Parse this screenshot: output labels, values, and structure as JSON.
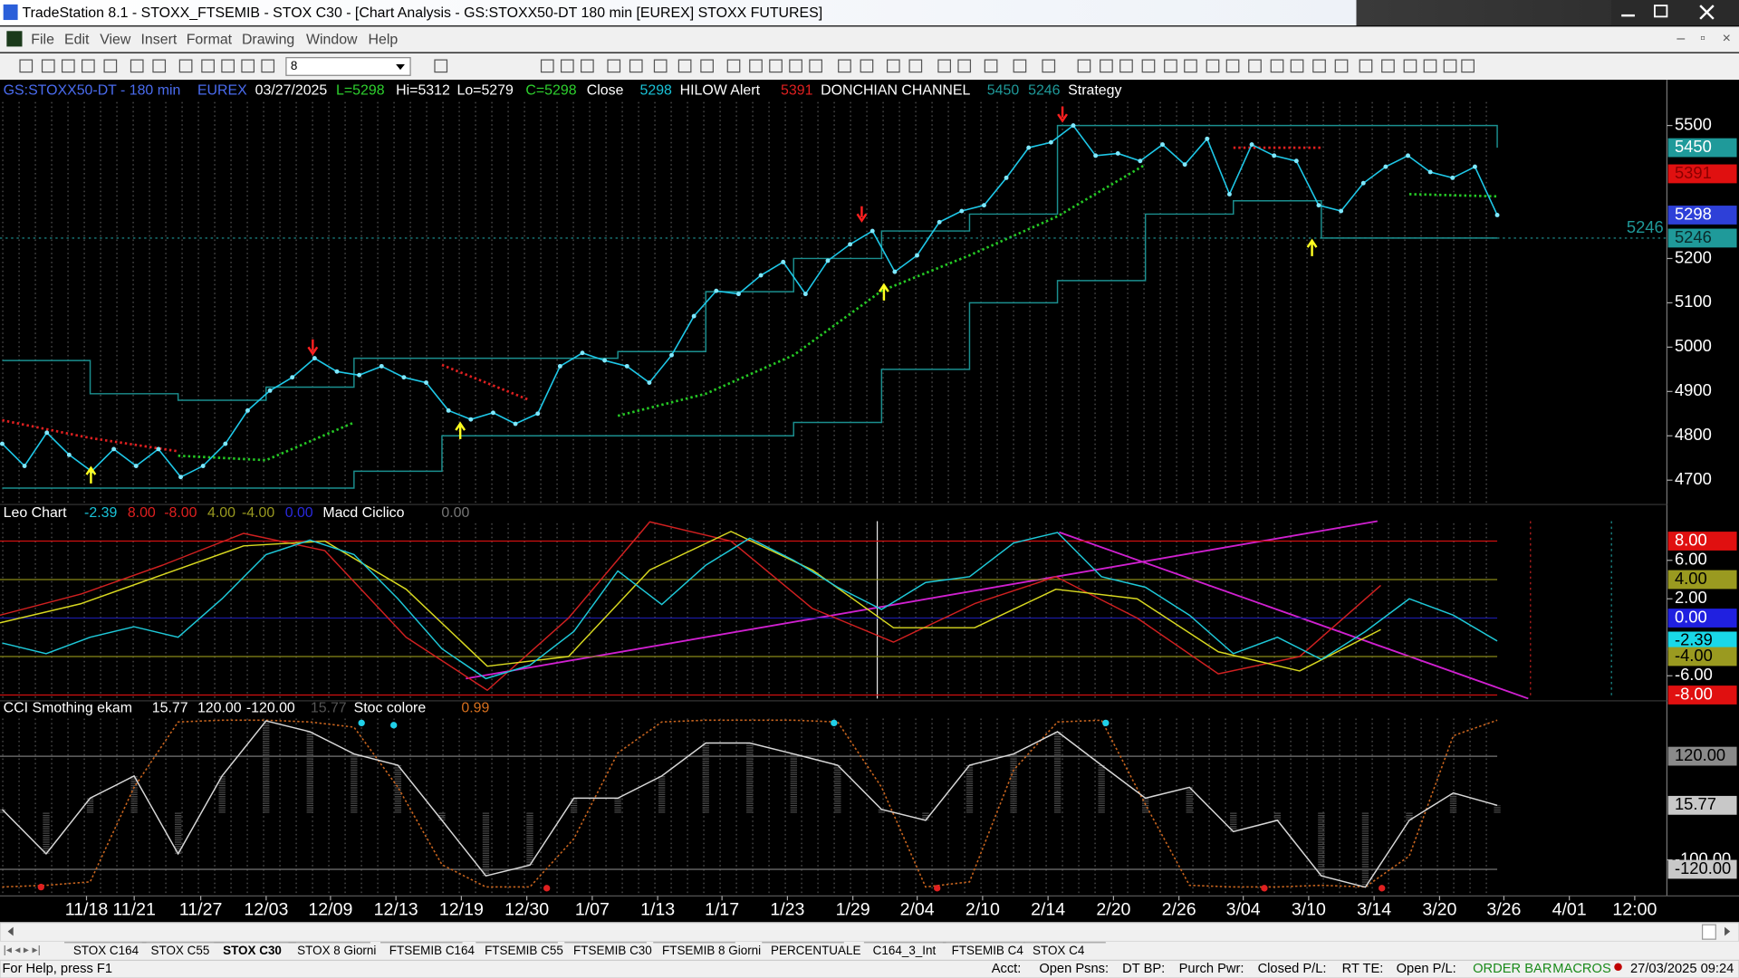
{
  "window": {
    "title": "TradeStation 8.1 - STOXX_FTSEMIB - STOX  C30 - [Chart Analysis - GS:STOXX50-DT  180 min  [EUREX] STOXX FUTURES]",
    "menu": [
      "File",
      "Edit",
      "View",
      "Insert",
      "Format",
      "Drawing",
      "Window",
      "Help"
    ],
    "interval": "8"
  },
  "price_pane": {
    "header": [
      {
        "text": "GS:STOXX50-DT - 180 min",
        "color": "#4a6cf0"
      },
      {
        "text": "EUREX",
        "color": "#4a6cf0"
      },
      {
        "text": "03/27/2025",
        "color": "#ffffff"
      },
      {
        "text": "L=5298",
        "color": "#2ed12e"
      },
      {
        "text": "Hi=5312",
        "color": "#ffffff"
      },
      {
        "text": "Lo=5279",
        "color": "#ffffff"
      },
      {
        "text": "C=5298",
        "color": "#2ed12e"
      },
      {
        "text": "Close",
        "color": "#ffffff"
      },
      {
        "text": "5298",
        "color": "#19c3d8"
      },
      {
        "text": "HILOW Alert",
        "color": "#ffffff"
      },
      {
        "text": "5391",
        "color": "#e02020"
      },
      {
        "text": "DONCHIAN CHANNEL",
        "color": "#ffffff"
      },
      {
        "text": "5450",
        "color": "#1f9a9a"
      },
      {
        "text": "5246",
        "color": "#1f9a9a"
      },
      {
        "text": "Strategy",
        "color": "#ffffff"
      }
    ],
    "ylim": [
      4645,
      5603
    ],
    "yticks": [
      4700,
      4800,
      4900,
      5000,
      5100,
      5200,
      5500
    ],
    "close": {
      "color": "#1ec8e8",
      "values": [
        4782,
        4732,
        4807,
        4757,
        4720,
        4770,
        4732,
        4770,
        4707,
        4732,
        4782,
        4857,
        4902,
        4932,
        4975,
        4945,
        4937,
        4957,
        4932,
        4920,
        4857,
        4837,
        4852,
        4827,
        4850,
        4957,
        4987,
        4970,
        4957,
        4920,
        4982,
        5070,
        5127,
        5120,
        5162,
        5192,
        5120,
        5195,
        5232,
        5262,
        5170,
        5207,
        5282,
        5307,
        5320,
        5382,
        5450,
        5462,
        5500,
        5432,
        5437,
        5420,
        5457,
        5412,
        5470,
        5345,
        5457,
        5432,
        5420,
        5320,
        5307,
        5370,
        5407,
        5432,
        5395,
        5382,
        5407,
        5298
      ]
    },
    "donchian_upper": {
      "color": "#1b8f8f",
      "values": [
        4970,
        4895,
        4880,
        4910,
        4975,
        4975,
        4975,
        4990,
        5125,
        5200,
        5262,
        5300,
        5500,
        5500,
        5500,
        5500,
        5500,
        5450
      ]
    },
    "donchian_lower": {
      "color": "#1b8f8f",
      "values": [
        4682,
        4682,
        4682,
        4682,
        4720,
        4800,
        4800,
        4800,
        4800,
        4830,
        4950,
        5100,
        5150,
        5300,
        5330,
        5246,
        5246,
        5246
      ]
    },
    "average_up": {
      "color": "#25c825",
      "values": [
        null,
        null,
        4755,
        4745,
        4830,
        null,
        null,
        4845,
        4895,
        4982,
        5127,
        5207,
        5295,
        5412,
        null,
        null,
        5345,
        5340
      ]
    },
    "average_down": {
      "color": "#e02020",
      "values": [
        4835,
        4795,
        4765,
        null,
        null,
        4960,
        4880,
        null,
        null,
        null,
        null,
        null,
        null,
        null,
        5450,
        5450,
        null,
        null
      ]
    },
    "markers": [
      {
        "value": 5450,
        "bg": "#1f9a9a",
        "fg": "#ffffff"
      },
      {
        "value": 5391,
        "bg": "#e01010",
        "fg": "#8a0000"
      },
      {
        "value": 5298,
        "bg": "#2e40d8",
        "fg": "#ffffff"
      },
      {
        "value": 5246,
        "bg": "#1f9a9a",
        "fg": "#0a2a2a"
      }
    ],
    "last_level": {
      "value": 5246,
      "color": "#1f9a9a"
    }
  },
  "oscillator_pane": {
    "header": [
      {
        "text": "Leo Chart",
        "color": "#ffffff"
      },
      {
        "text": "-2.39",
        "color": "#19c3d8"
      },
      {
        "text": "8.00",
        "color": "#e02020"
      },
      {
        "text": "-8.00",
        "color": "#e02020"
      },
      {
        "text": "4.00",
        "color": "#9a9a20"
      },
      {
        "text": "-4.00",
        "color": "#9a9a20"
      },
      {
        "text": "0.00",
        "color": "#2a2ae0"
      },
      {
        "text": "Macd Ciclico",
        "color": "#ffffff"
      },
      {
        "text": "0.00",
        "color": "#777777"
      }
    ],
    "ylim": [
      -8.6,
      11.8
    ],
    "yticks": [
      {
        "value": 8,
        "label": "8.00",
        "bg": "#e01010",
        "fg": "#ffffff"
      },
      {
        "value": 6,
        "label": "6.00"
      },
      {
        "value": 4,
        "label": "4.00",
        "bg": "#9a9a20",
        "fg": "#000000"
      },
      {
        "value": 2,
        "label": "2.00"
      },
      {
        "value": 0,
        "label": "0.00",
        "bg": "#2020e0",
        "fg": "#ffffff"
      },
      {
        "value": -2.39,
        "label": "-2.39",
        "bg": "#19d8e8",
        "fg": "#000000"
      },
      {
        "value": -4,
        "label": "-4.00",
        "bg": "#9a9a20",
        "fg": "#000000"
      },
      {
        "value": -6,
        "label": "-6.00"
      },
      {
        "value": -8,
        "label": "-8.00",
        "bg": "#e01010",
        "fg": "#ffffff"
      }
    ],
    "levels": [
      {
        "value": 8,
        "color": "#d01010"
      },
      {
        "value": 4,
        "color": "#8a8a18"
      },
      {
        "value": 0,
        "color": "#1a1aa0"
      },
      {
        "value": -4,
        "color": "#8a8a18"
      },
      {
        "value": -8,
        "color": "#d01010"
      }
    ],
    "leo": {
      "color": "#1ec8d8",
      "values": [
        -2.6,
        -3.7,
        -2.0,
        -0.9,
        -2.0,
        2.0,
        6.6,
        8.1,
        6.6,
        2.0,
        -3.2,
        -6.3,
        -4.9,
        -1.4,
        4.9,
        1.4,
        5.5,
        8.3,
        6.0,
        3.2,
        0.9,
        3.7,
        4.3,
        7.8,
        8.9,
        4.3,
        3.2,
        0.3,
        -3.7,
        -2.0,
        -4.3,
        -1.4,
        2.0,
        0.3,
        -2.39
      ]
    },
    "macd_fast": {
      "color": "#d02020",
      "values": [
        0.3,
        2.5,
        5.5,
        8.8,
        7,
        -2,
        -7.5,
        0,
        10,
        8,
        1,
        -2.5,
        1.5,
        4.3,
        0,
        -5.8,
        -4,
        3.4
      ]
    },
    "macd_slow": {
      "color": "#d8d820",
      "values": [
        -0.5,
        1.5,
        4.5,
        7.5,
        8,
        3,
        -5,
        -4,
        5,
        9,
        5,
        -1,
        -1,
        3,
        2,
        -3.5,
        -5.5,
        -1.2
      ]
    }
  },
  "cci_pane": {
    "header": [
      {
        "text": "CCI Smothing ekam",
        "color": "#ffffff"
      },
      {
        "text": "15.77",
        "color": "#ffffff"
      },
      {
        "text": "120.00",
        "color": "#ffffff"
      },
      {
        "text": "-120.00",
        "color": "#ffffff"
      },
      {
        "text": "15.77",
        "color": "#555555"
      },
      {
        "text": "Stoc colore",
        "color": "#ffffff"
      },
      {
        "text": "0.99",
        "color": "#d8701e"
      }
    ],
    "ylim": [
      -176.5,
      237.6
    ],
    "yticks": [
      {
        "value": 120,
        "label": "120.00",
        "bg": "#8a8a8a",
        "fg": "#000000"
      },
      {
        "value": 15.77,
        "label": "15.77",
        "bg": "#c8c8c8",
        "fg": "#000000"
      },
      {
        "value": -100,
        "label": "-100.00"
      },
      {
        "value": -120,
        "label": "-120.00",
        "bg": "#c8c8c8",
        "fg": "#000000"
      }
    ],
    "levels": [
      {
        "value": 120,
        "color": "#777777"
      },
      {
        "value": -120,
        "color": "#777777"
      }
    ],
    "cci": {
      "color": "#d8d8d8",
      "values": [
        7,
        -87,
        31,
        78,
        -87,
        78,
        195,
        172,
        125,
        101,
        -16,
        -134,
        -111,
        31,
        31,
        78,
        148,
        148,
        125,
        101,
        7,
        -16,
        101,
        125,
        172,
        101,
        31,
        54,
        -40,
        -16,
        -134,
        -158,
        -16,
        42,
        15.77
      ]
    },
    "stoc": {
      "color": "#c8641e",
      "values": [
        0.02,
        0.03,
        0.05,
        0.6,
        0.98,
        0.99,
        0.99,
        0.98,
        0.95,
        0.6,
        0.15,
        0.02,
        0.02,
        0.3,
        0.8,
        0.98,
        0.99,
        0.99,
        0.99,
        0.98,
        0.6,
        0.02,
        0.05,
        0.7,
        0.98,
        0.99,
        0.5,
        0.03,
        0.02,
        0.02,
        0.03,
        0.02,
        0.2,
        0.9,
        0.99
      ]
    }
  },
  "x_axis": {
    "labels": [
      "11/18",
      "11/21",
      "11/27",
      "12/03",
      "12/09",
      "12/13",
      "12/19",
      "12/30",
      "1/07",
      "1/13",
      "1/17",
      "1/23",
      "1/29",
      "2/04",
      "2/10",
      "2/14",
      "2/20",
      "2/26",
      "3/04",
      "3/10",
      "3/14",
      "3/20",
      "3/26",
      "4/01",
      "12:00"
    ]
  },
  "tabs": {
    "items": [
      "STOX C164",
      "STOX C55",
      "STOX C30",
      "STOX 8 Giorni",
      "FTSEMIB C164",
      "FTSEMIB C55",
      "FTSEMIB C30",
      "FTSEMIB 8 Giorni",
      "PERCENTUALE",
      "C164_3_Int",
      "FTSEMIB C4",
      "STOX C4"
    ],
    "active": 2
  },
  "status_bar": {
    "help": "For Help, press F1",
    "fields": [
      "Acct:",
      "Open Psns:",
      "DT BP:",
      "Purch Pwr:",
      "Closed P/L:",
      "RT TE:",
      "Open P/L:"
    ],
    "order_bar": "ORDER BAR",
    "macros": "MACROS",
    "datetime": "27/03/2025 09:24"
  }
}
